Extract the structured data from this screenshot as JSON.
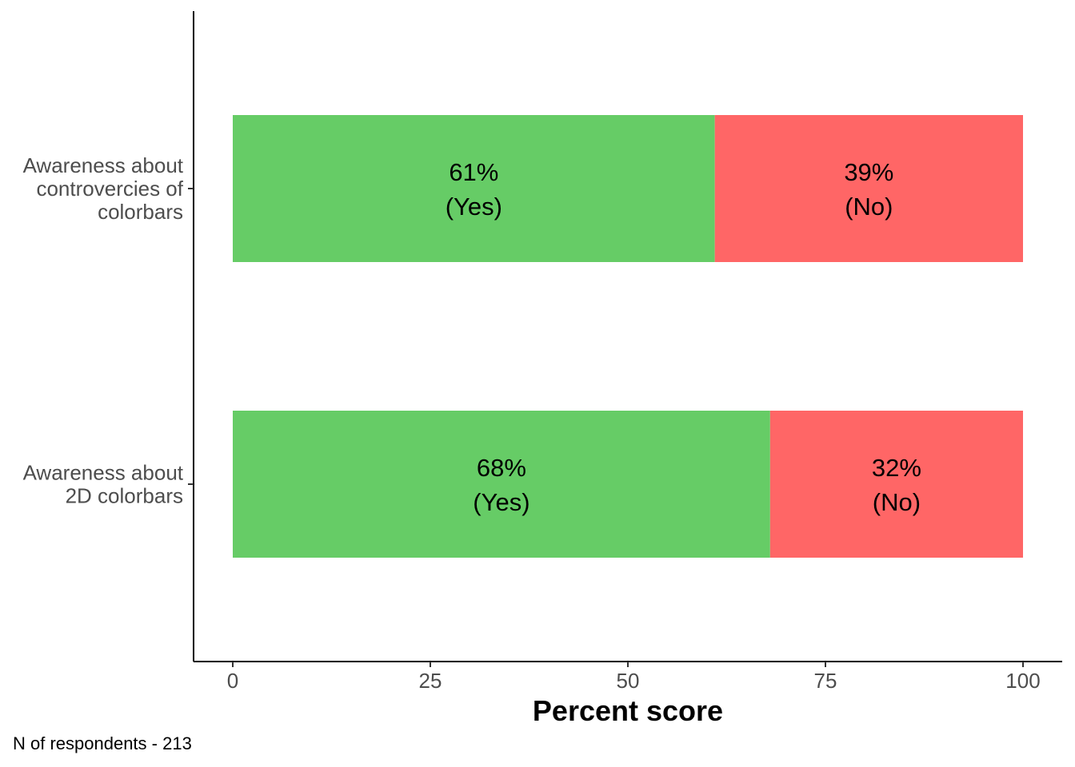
{
  "chart_data": {
    "type": "bar",
    "orientation": "horizontal",
    "stacked": true,
    "categories": [
      [
        "Awareness about",
        "controvercies of",
        "colorbars"
      ],
      [
        "Awareness about",
        "2D colorbars"
      ]
    ],
    "series": [
      {
        "name": "Yes",
        "values": [
          61,
          68
        ],
        "labels": [
          [
            "61%",
            "(Yes)"
          ],
          [
            "68%",
            "(Yes)"
          ]
        ],
        "color": "#66cc66"
      },
      {
        "name": "No",
        "values": [
          39,
          32
        ],
        "labels": [
          [
            "39%",
            "(No)"
          ],
          [
            "32%",
            "(No)"
          ]
        ],
        "color": "#ff6666"
      }
    ],
    "xlabel": "Percent score",
    "ylabel": "",
    "xlim": [
      -5,
      105
    ],
    "xticks": [
      0,
      25,
      50,
      75,
      100
    ],
    "xtick_labels": [
      "0",
      "25",
      "50",
      "75",
      "100"
    ],
    "grid": false,
    "legend": "none"
  },
  "caption": "N of respondents - 213"
}
